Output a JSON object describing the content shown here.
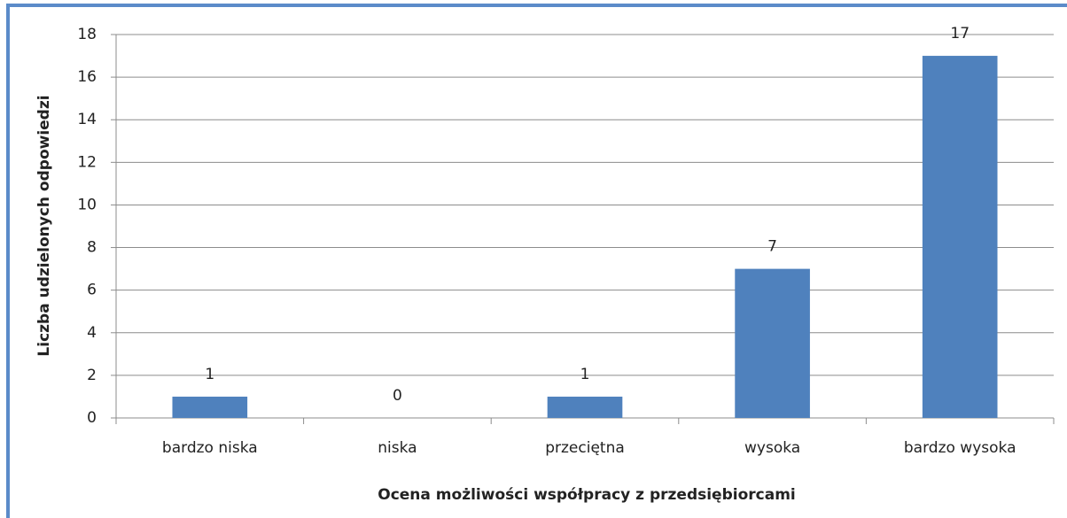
{
  "chart_data": {
    "type": "bar",
    "x_label": "Ocena możliwości współpracy z przedsiębiorcami",
    "y_label": "Liczba udzielonych odpowiedzi",
    "categories": [
      "bardzo niska",
      "niska",
      "przeciętna",
      "wysoka",
      "bardzo wysoka"
    ],
    "values": [
      1,
      0,
      1,
      7,
      17
    ],
    "color": "#4f81bd",
    "ylim": [
      0,
      18
    ],
    "yticks": [
      0,
      2,
      4,
      6,
      8,
      10,
      12,
      14,
      16,
      18
    ],
    "grid": true
  }
}
